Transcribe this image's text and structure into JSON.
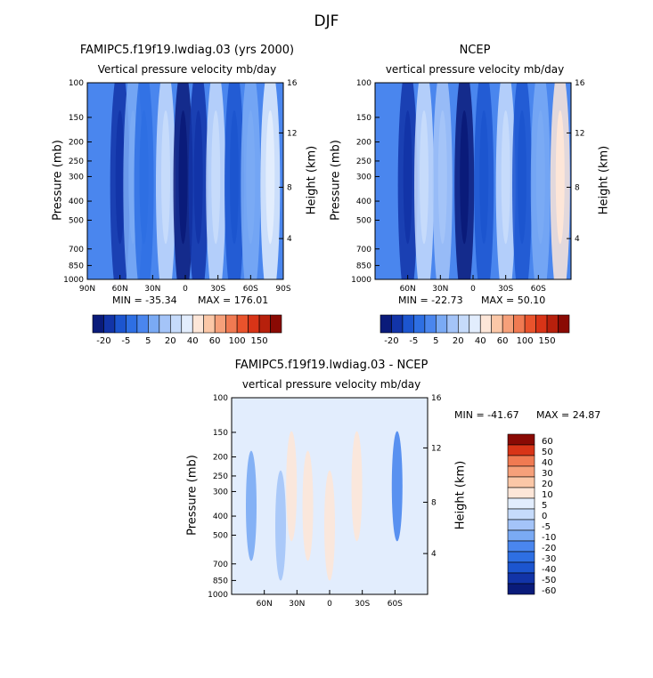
{
  "title": "DJF",
  "colors": {
    "c-20": "#0a1b7a",
    "c-15": "#1234a8",
    "c-10": "#1c55cf",
    "c-5": "#2e6fe3",
    "c0": "#4a86ee",
    "c5": "#7aaaf4",
    "c10": "#a4c4f8",
    "c15": "#c6dbfb",
    "c20": "#e2edfd",
    "c30": "#fde6d8",
    "c40": "#fbc7a7",
    "c50": "#f6a07a",
    "c60": "#f07a52",
    "c80": "#e9532c",
    "c100": "#d83417",
    "c120": "#b7200c",
    "c150": "#8a0a04",
    "d-60": "#0a1b7a",
    "d-50": "#1234a8",
    "d-40": "#1c55cf",
    "d-30": "#2e6fe3",
    "d-20": "#4a86ee",
    "d-10": "#7aaaf4",
    "d-5": "#a4c4f8",
    "d0": "#c6dbfb",
    "d5": "#e2edfd",
    "d10": "#fde6d8",
    "d20": "#fbc7a7",
    "d30": "#f6a07a",
    "d40": "#f07a52",
    "d50": "#d83417",
    "d60": "#8a0a04"
  },
  "chart_data": [
    {
      "type": "heatmap",
      "id": "model",
      "title": "FAMIPC5.f19f19.lwdiag.03 (yrs 2000)",
      "subtitle": "Vertical pressure velocity  mb/day",
      "ylabel": "Pressure (mb)",
      "y2label": "Height (km)",
      "xticks": [
        "90N",
        "60N",
        "30N",
        "0",
        "30S",
        "60S",
        "90S"
      ],
      "yticks": [
        "100",
        "150",
        "200",
        "250",
        "300",
        "400",
        "500",
        "700",
        "850",
        "1000"
      ],
      "y2ticks": [
        "16",
        "12",
        "8",
        "4"
      ],
      "xlim": [
        90,
        -90
      ],
      "ylim": [
        1000,
        100
      ],
      "min_label": "MIN = -35.34",
      "max_label": "MAX = 176.01",
      "min": -35.34,
      "max": 176.01,
      "colorbar_labels": [
        "-20",
        "-5",
        "5",
        "20",
        "40",
        "60",
        "100",
        "150"
      ],
      "colorbar_levels": [
        "c-20",
        "c-15",
        "c-10",
        "c-5",
        "c0",
        "c5",
        "c10",
        "c15",
        "c20",
        "c30",
        "c40",
        "c50",
        "c60",
        "c80",
        "c100",
        "c120",
        "c150"
      ],
      "features": [
        {
          "lat": 60,
          "level": "c-15"
        },
        {
          "lat": 48,
          "level": "c5"
        },
        {
          "lat": 38,
          "level": "c-5"
        },
        {
          "lat": 18,
          "level": "c15"
        },
        {
          "lat": 2,
          "level": "c-20"
        },
        {
          "lat": -12,
          "level": "c-15"
        },
        {
          "lat": -28,
          "level": "c15"
        },
        {
          "lat": -45,
          "level": "c-10"
        },
        {
          "lat": -60,
          "level": "c5"
        },
        {
          "lat": -78,
          "level": "c20"
        }
      ]
    },
    {
      "type": "heatmap",
      "id": "obs",
      "title": "NCEP",
      "subtitle": "vertical pressure velocity  mb/day",
      "ylabel": "Pressure (mb)",
      "y2label": "Height (km)",
      "xticks": [
        "60N",
        "30N",
        "0",
        "30S",
        "60S"
      ],
      "yticks": [
        "100",
        "150",
        "200",
        "250",
        "300",
        "400",
        "500",
        "700",
        "850",
        "1000"
      ],
      "y2ticks": [
        "16",
        "12",
        "8",
        "4"
      ],
      "xlim": [
        90,
        -90
      ],
      "ylim": [
        1000,
        100
      ],
      "min_label": "MIN = -22.73",
      "max_label": "MAX =  50.10",
      "min": -22.73,
      "max": 50.1,
      "colorbar_labels": [
        "-20",
        "-5",
        "5",
        "20",
        "40",
        "60",
        "100",
        "150"
      ],
      "colorbar_levels": [
        "c-20",
        "c-15",
        "c-10",
        "c-5",
        "c0",
        "c5",
        "c10",
        "c15",
        "c20",
        "c30",
        "c40",
        "c50",
        "c60",
        "c80",
        "c100",
        "c120",
        "c150"
      ],
      "features": [
        {
          "lat": 60,
          "level": "c-15"
        },
        {
          "lat": 45,
          "level": "c15"
        },
        {
          "lat": 28,
          "level": "c10"
        },
        {
          "lat": 8,
          "level": "c-20"
        },
        {
          "lat": -10,
          "level": "c-10"
        },
        {
          "lat": -30,
          "level": "c15"
        },
        {
          "lat": -45,
          "level": "c-10"
        },
        {
          "lat": -62,
          "level": "c5"
        },
        {
          "lat": -80,
          "level": "c30"
        }
      ]
    },
    {
      "type": "heatmap",
      "id": "diff",
      "title": "FAMIPC5.f19f19.lwdiag.03 - NCEP",
      "subtitle": "vertical pressure velocity  mb/day",
      "ylabel": "Pressure (mb)",
      "y2label": "Height (km)",
      "xticks": [
        "60N",
        "30N",
        "0",
        "30S",
        "60S"
      ],
      "yticks": [
        "100",
        "150",
        "200",
        "250",
        "300",
        "400",
        "500",
        "700",
        "850",
        "1000"
      ],
      "y2ticks": [
        "16",
        "12",
        "8",
        "4"
      ],
      "xlim": [
        90,
        -90
      ],
      "ylim": [
        1000,
        100
      ],
      "min_label": "MIN = -41.67",
      "max_label": "MAX =  24.87",
      "min": -41.67,
      "max": 24.87,
      "colorbar_labels": [
        "60",
        "50",
        "40",
        "30",
        "20",
        "10",
        "5",
        "0",
        "-5",
        "-10",
        "-20",
        "-30",
        "-40",
        "-50",
        "-60"
      ],
      "colorbar_levels": [
        "d60",
        "d50",
        "d40",
        "d30",
        "d20",
        "d10",
        "d5",
        "d0",
        "d-5",
        "d-10",
        "d-20",
        "d-30",
        "d-40",
        "d-50",
        "d-60"
      ],
      "features": [
        {
          "lat": 35,
          "level": "d10"
        },
        {
          "lat": 20,
          "level": "d10"
        },
        {
          "lat": 0,
          "level": "d10"
        },
        {
          "lat": -25,
          "level": "d10"
        },
        {
          "lat": 72,
          "level": "d-10"
        },
        {
          "lat": 45,
          "level": "d-5"
        },
        {
          "lat": -62,
          "level": "d-20"
        }
      ]
    }
  ]
}
